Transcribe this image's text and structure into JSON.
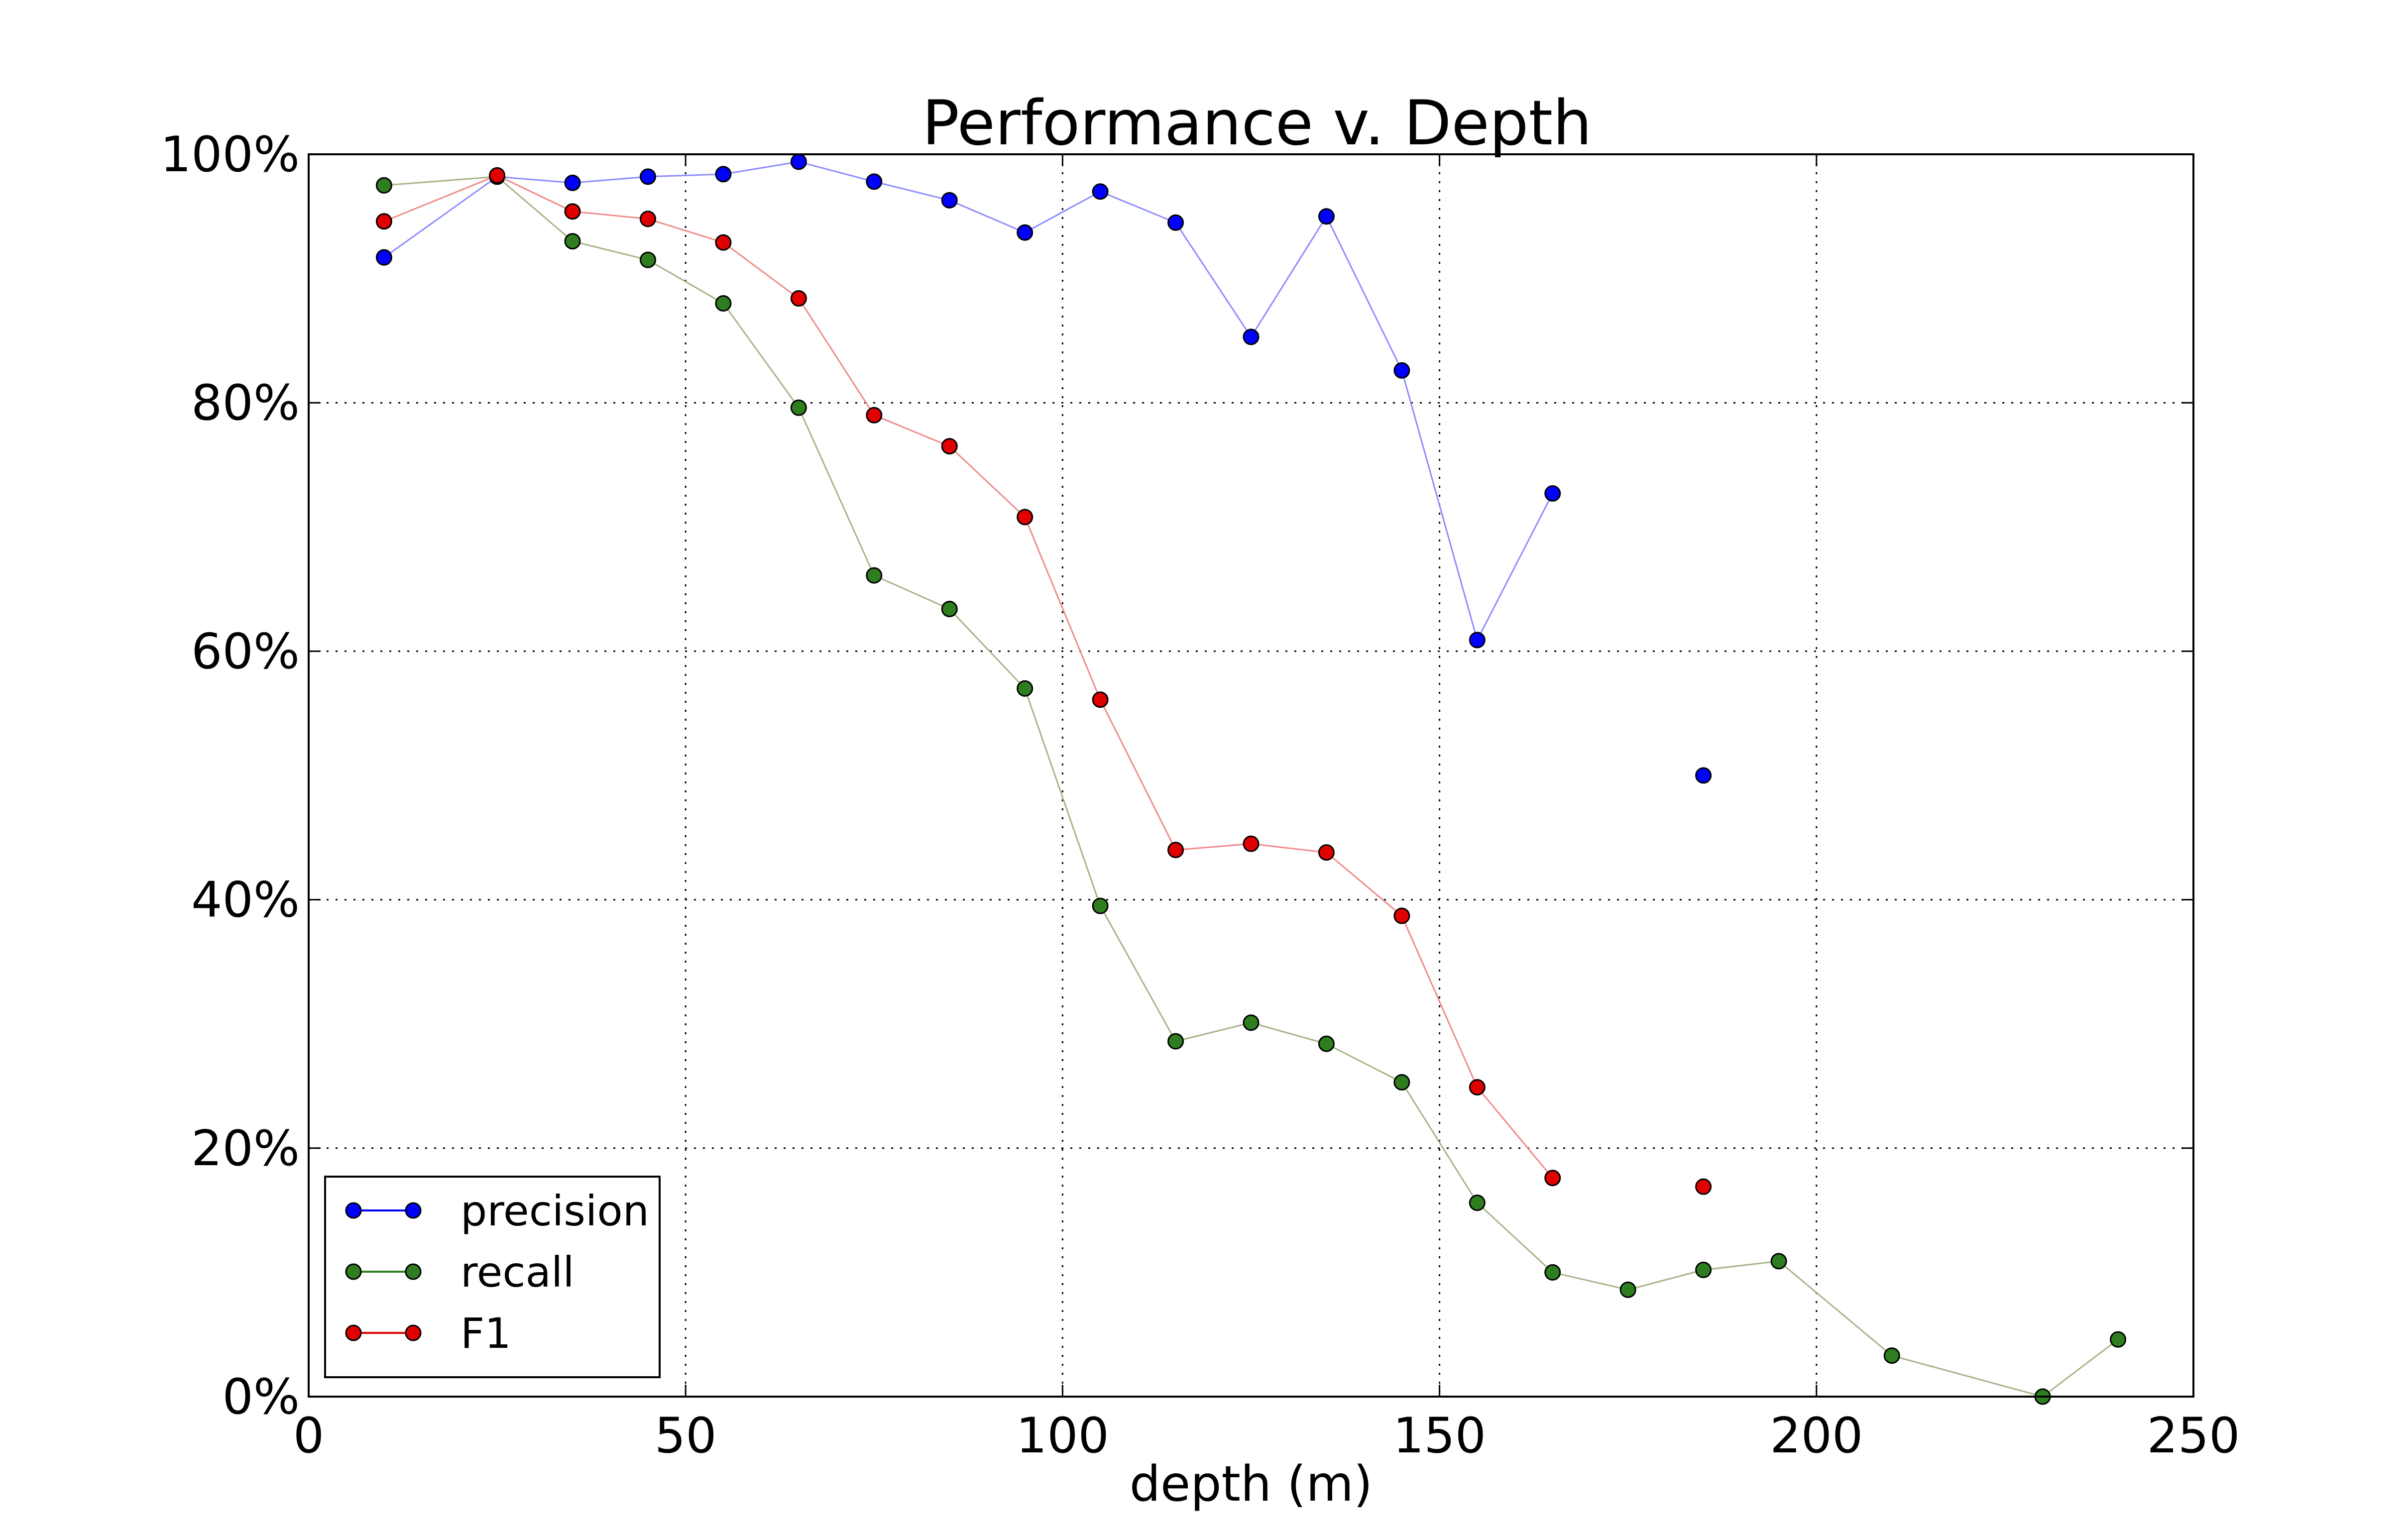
{
  "chart_data": {
    "type": "line",
    "title": "Performance v. Depth",
    "xlabel": "depth (m)",
    "ylabel": "",
    "xlim": [
      0,
      250
    ],
    "ylim": [
      0,
      100
    ],
    "xticks": [
      0,
      50,
      100,
      150,
      200,
      250
    ],
    "xtick_labels": [
      "0",
      "50",
      "100",
      "150",
      "200",
      "250"
    ],
    "yticks": [
      0,
      20,
      40,
      60,
      80,
      100
    ],
    "ytick_labels": [
      "0%",
      "20%",
      "40%",
      "60%",
      "80%",
      "100%"
    ],
    "grid": true,
    "legend_position": "lower-left",
    "series": [
      {
        "name": "precision",
        "color": "#0000ff",
        "line_color": "#8c8cff",
        "segments": [
          [
            [
              10,
              91.7
            ],
            [
              25,
              98.2
            ],
            [
              35,
              97.7
            ],
            [
              45,
              98.2
            ],
            [
              55,
              98.4
            ],
            [
              65,
              99.4
            ],
            [
              75,
              97.8
            ],
            [
              85,
              96.3
            ],
            [
              95,
              93.7
            ],
            [
              105,
              97.0
            ],
            [
              115,
              94.5
            ],
            [
              125,
              85.3
            ],
            [
              135,
              95.0
            ],
            [
              145,
              82.6
            ],
            [
              155,
              60.9
            ],
            [
              165,
              72.7
            ]
          ],
          [
            [
              185,
              50.0
            ]
          ]
        ]
      },
      {
        "name": "recall",
        "color": "#2e7d1e",
        "line_color": "#a6b48a",
        "segments": [
          [
            [
              10,
              97.5
            ],
            [
              25,
              98.2
            ],
            [
              35,
              93.0
            ],
            [
              45,
              91.5
            ],
            [
              55,
              88.0
            ],
            [
              65,
              79.6
            ],
            [
              75,
              66.1
            ],
            [
              85,
              63.4
            ],
            [
              95,
              57.0
            ],
            [
              105,
              39.5
            ],
            [
              115,
              28.6
            ],
            [
              125,
              30.1
            ],
            [
              135,
              28.4
            ],
            [
              145,
              25.3
            ],
            [
              155,
              15.6
            ],
            [
              165,
              10.0
            ],
            [
              175,
              8.6
            ],
            [
              185,
              10.2
            ],
            [
              195,
              10.9
            ],
            [
              210,
              3.3
            ],
            [
              230,
              0
            ],
            [
              240,
              4.6
            ]
          ]
        ]
      },
      {
        "name": "F1",
        "color": "#e00000",
        "line_color": "#f08a8a",
        "segments": [
          [
            [
              10,
              94.6
            ],
            [
              25,
              98.3
            ],
            [
              35,
              95.4
            ],
            [
              45,
              94.8
            ],
            [
              55,
              92.9
            ],
            [
              65,
              88.4
            ],
            [
              75,
              79.0
            ],
            [
              85,
              76.5
            ],
            [
              95,
              70.8
            ],
            [
              105,
              56.1
            ],
            [
              115,
              44.0
            ],
            [
              125,
              44.5
            ],
            [
              135,
              43.8
            ],
            [
              145,
              38.7
            ],
            [
              155,
              24.9
            ],
            [
              165,
              17.6
            ]
          ],
          [
            [
              185,
              16.9
            ]
          ]
        ]
      }
    ]
  }
}
